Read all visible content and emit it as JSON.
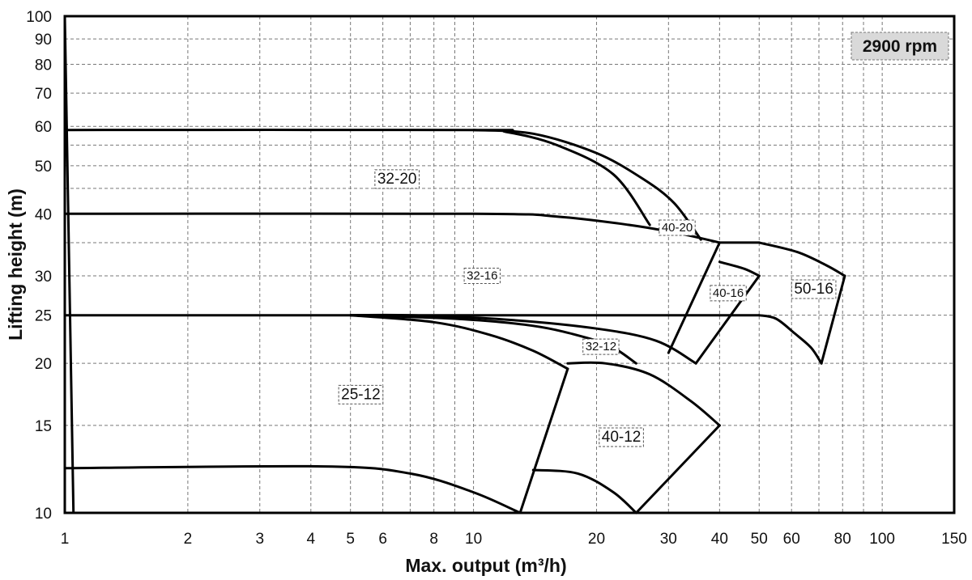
{
  "chart_data": {
    "type": "line",
    "xlabel": "Max. output (m³/h)",
    "ylabel": "Lifting height (m)",
    "xscale": "log",
    "yscale": "log",
    "xlim": [
      1,
      150
    ],
    "ylim": [
      10,
      100
    ],
    "grid": true,
    "badge": "2900 rpm",
    "x_ticks": [
      1,
      2,
      3,
      4,
      5,
      6,
      8,
      10,
      20,
      30,
      40,
      50,
      60,
      80,
      100,
      150
    ],
    "y_ticks": [
      10,
      15,
      20,
      25,
      30,
      40,
      50,
      60,
      70,
      80,
      90,
      100
    ],
    "x_grid": [
      1,
      2,
      3,
      4,
      5,
      6,
      7,
      8,
      9,
      10,
      20,
      30,
      40,
      50,
      60,
      70,
      80,
      90,
      100,
      150
    ],
    "y_grid": [
      10,
      15,
      20,
      25,
      30,
      35,
      40,
      45,
      50,
      55,
      60,
      70,
      80,
      90,
      100
    ],
    "curves": [
      [
        [
          1,
          59
        ],
        [
          10,
          59
        ],
        [
          12,
          58.5
        ],
        [
          16,
          55
        ],
        [
          22,
          48
        ],
        [
          27,
          38
        ]
      ],
      [
        [
          10,
          59
        ],
        [
          14,
          58
        ],
        [
          20,
          53
        ],
        [
          26,
          47
        ],
        [
          31,
          42
        ],
        [
          36,
          35.5
        ]
      ],
      [
        [
          1,
          40
        ],
        [
          10,
          40
        ],
        [
          16,
          39.5
        ],
        [
          24,
          38
        ],
        [
          32,
          36.5
        ],
        [
          40,
          35
        ]
      ],
      [
        [
          40,
          35
        ],
        [
          50,
          35
        ]
      ],
      [
        [
          50,
          35
        ],
        [
          62,
          33.5
        ],
        [
          73,
          31.5
        ],
        [
          81,
          30
        ]
      ],
      [
        [
          81,
          30
        ],
        [
          71,
          20
        ]
      ],
      [
        [
          50,
          25
        ],
        [
          55,
          24.6
        ],
        [
          61,
          23
        ],
        [
          67,
          21.5
        ],
        [
          71,
          20
        ]
      ],
      [
        [
          40,
          35
        ],
        [
          30,
          21
        ]
      ],
      [
        [
          40,
          32
        ],
        [
          46,
          31
        ],
        [
          50,
          30
        ]
      ],
      [
        [
          50,
          30
        ],
        [
          35,
          20
        ]
      ],
      [
        [
          1,
          25
        ],
        [
          50,
          25
        ]
      ],
      [
        [
          5,
          25
        ],
        [
          7,
          25
        ],
        [
          12,
          24.5
        ],
        [
          20,
          23.5
        ],
        [
          28,
          22.2
        ],
        [
          35,
          20
        ]
      ],
      [
        [
          5,
          25
        ],
        [
          9,
          24.6
        ],
        [
          14,
          23.8
        ],
        [
          19,
          22.5
        ],
        [
          22,
          21.5
        ],
        [
          25,
          20
        ]
      ],
      [
        [
          5,
          25
        ],
        [
          8,
          24.2
        ],
        [
          11,
          22.8
        ],
        [
          14,
          21.2
        ],
        [
          17,
          19.5
        ]
      ],
      [
        [
          17,
          19.5
        ],
        [
          13,
          10
        ]
      ],
      [
        [
          17,
          20
        ],
        [
          21,
          20
        ],
        [
          27,
          19
        ],
        [
          34,
          16.8
        ],
        [
          40,
          15
        ]
      ],
      [
        [
          40,
          15
        ],
        [
          25,
          10
        ]
      ],
      [
        [
          14,
          12.2
        ],
        [
          18,
          12
        ],
        [
          22,
          11
        ],
        [
          25,
          10
        ]
      ],
      [
        [
          1,
          12.3
        ],
        [
          4.3,
          12.4
        ],
        [
          7,
          12
        ],
        [
          10,
          11
        ],
        [
          13,
          10
        ]
      ],
      [
        [
          1,
          100
        ],
        [
          1.05,
          10
        ]
      ],
      [
        [
          1.05,
          10
        ],
        [
          150,
          10
        ]
      ]
    ],
    "region_labels": [
      {
        "text": "32-20",
        "x": 6.5,
        "y": 47,
        "size": "large"
      },
      {
        "text": "40-20",
        "x": 31.5,
        "y": 37.5,
        "size": "small"
      },
      {
        "text": "32-16",
        "x": 10.5,
        "y": 30,
        "size": "small"
      },
      {
        "text": "40-16",
        "x": 42,
        "y": 27.7,
        "size": "small"
      },
      {
        "text": "50-16",
        "x": 68,
        "y": 28.2,
        "size": "large"
      },
      {
        "text": "32-12",
        "x": 20.5,
        "y": 21.6,
        "size": "small"
      },
      {
        "text": "25-12",
        "x": 5.3,
        "y": 17.3,
        "size": "large"
      },
      {
        "text": "40-12",
        "x": 23,
        "y": 14.2,
        "size": "large"
      }
    ]
  }
}
